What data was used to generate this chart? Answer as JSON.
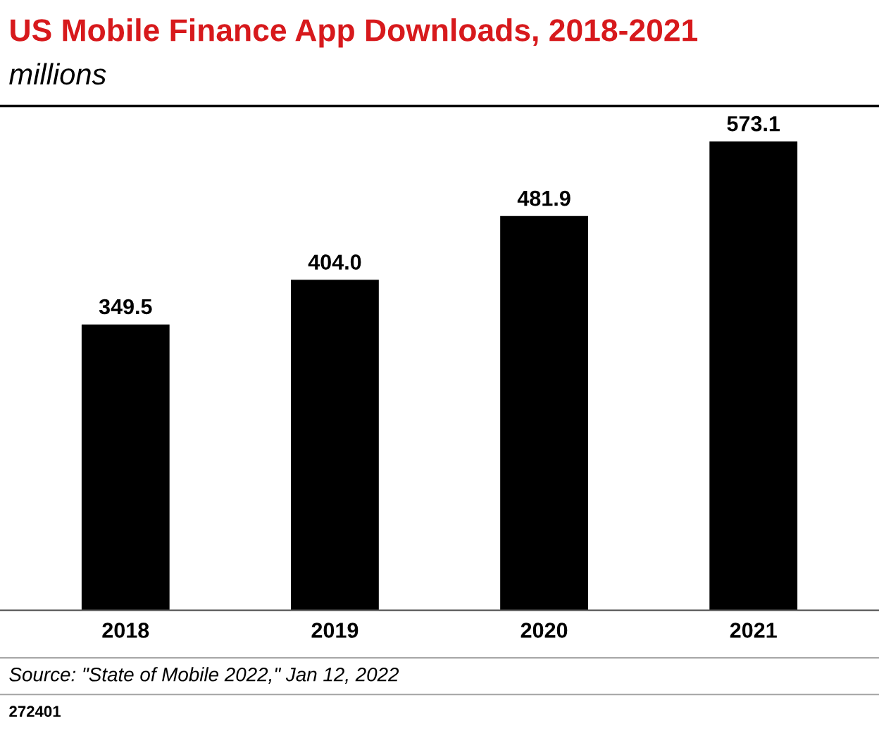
{
  "chart_data": {
    "type": "bar",
    "title": "US Mobile Finance App Downloads, 2018-2021",
    "subtitle": "millions",
    "categories": [
      "2018",
      "2019",
      "2020",
      "2021"
    ],
    "values": [
      349.5,
      404.0,
      481.9,
      573.1
    ],
    "color": "#000000",
    "value_labels": [
      "349.5",
      "404.0",
      "481.9",
      "573.1"
    ],
    "annotations": [
      "Source: \"State of Mobile 2022,\" Jan 12, 2022",
      "272401"
    ],
    "grid": false,
    "legend": false
  }
}
